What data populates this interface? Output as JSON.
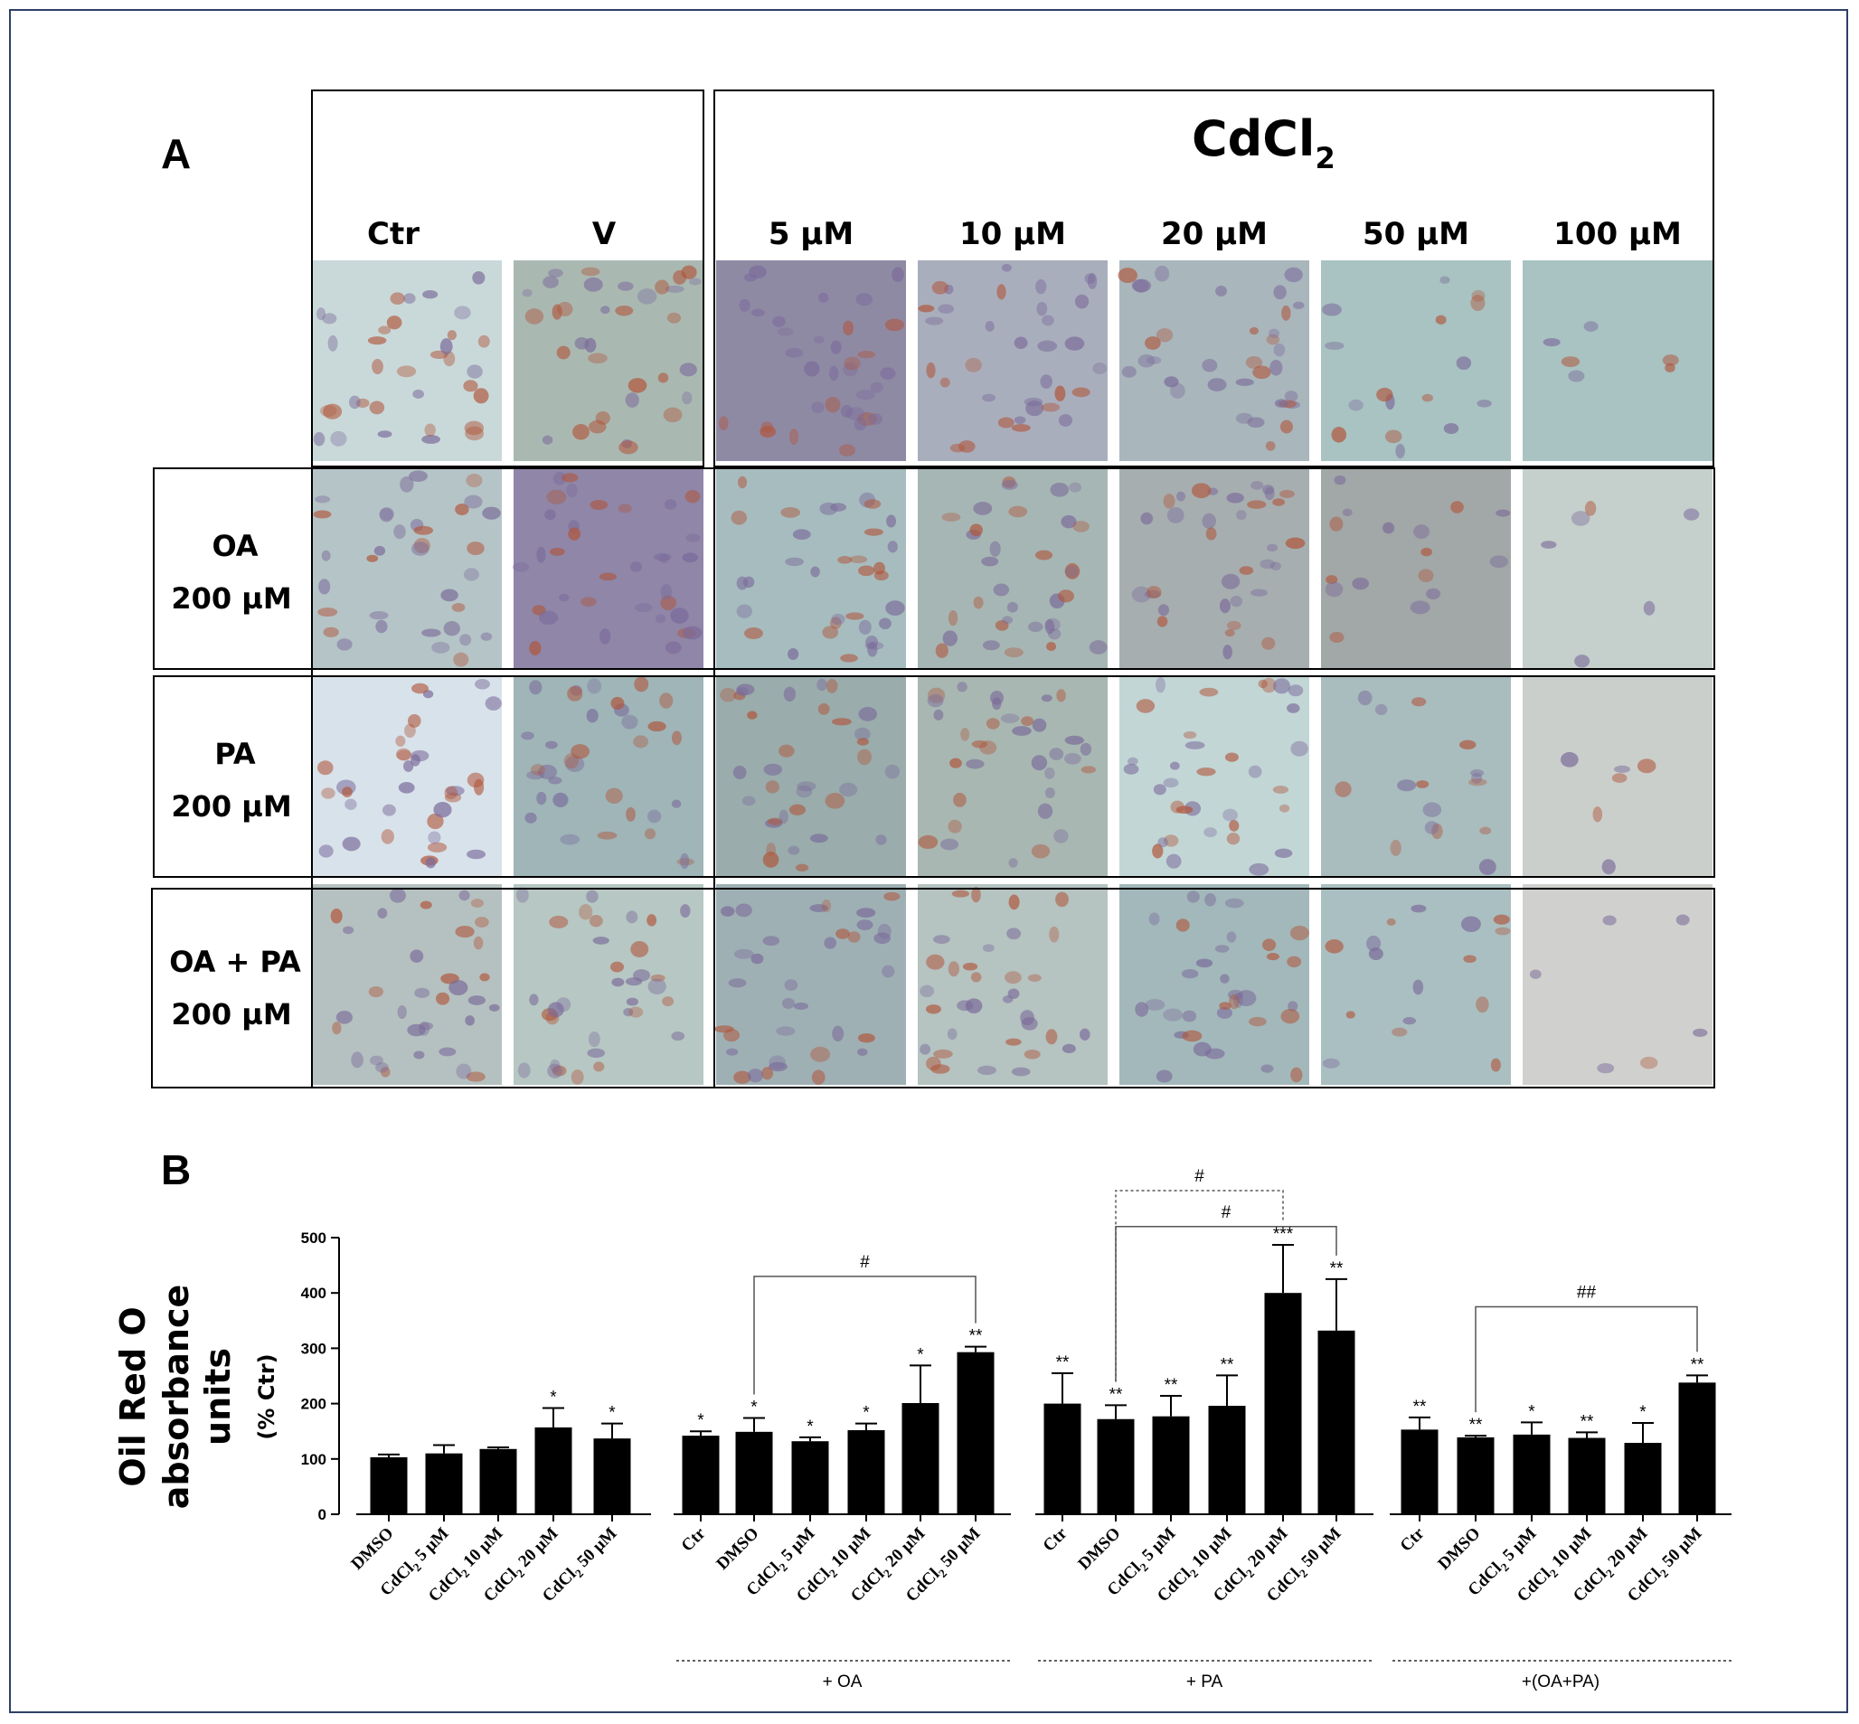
{
  "panel_a": {
    "letter": "A",
    "treatment_header": "CdCl",
    "treatment_sub": "2",
    "columns": [
      "Ctr",
      "V",
      "5 µM",
      "10 µM",
      "20 µM",
      "50 µM",
      "100 µM"
    ],
    "rows": [
      {
        "line1": "",
        "line2": ""
      },
      {
        "line1": "OA",
        "line2": "200 µM"
      },
      {
        "line1": "PA",
        "line2": "200 µM"
      },
      {
        "line1": "OA + PA",
        "line2": "200 µM"
      }
    ],
    "tile_colors": [
      [
        "#c9d9d9",
        "#aab8b2",
        "#8f8aa4",
        "#a9aebc",
        "#a9b6bc",
        "#a9c2c2",
        "#a9c2c2"
      ],
      [
        "#b5c4c6",
        "#8f86a8",
        "#a7bcbf",
        "#a6b6b4",
        "#a6aeb0",
        "#a2a7a7",
        "#c5d0cc"
      ],
      [
        "#d8e2ea",
        "#9fb5b8",
        "#9aacac",
        "#a8b7b2",
        "#c2d6d6",
        "#a9bcbe",
        "#cbcfcc"
      ],
      [
        "#b5c1c0",
        "#b7c7c3",
        "#9fb0b4",
        "#b5c3c1",
        "#a3b8ba",
        "#aabfc1",
        "#d0d1ce"
      ]
    ]
  },
  "chart_data": {
    "type": "bar",
    "panel_letter": "B",
    "ylabel_line1": "Oil Red O",
    "ylabel_line2": "absorbance",
    "ylabel_line3": "units",
    "ylabel_unit": "(% Ctr)",
    "ylim": [
      0,
      500
    ],
    "yticks": [
      0,
      100,
      200,
      300,
      400,
      500
    ],
    "bar_color": "#000000",
    "groups": [
      {
        "label": "",
        "categories": [
          {
            "main": "DMSO",
            "sub": "",
            "tail": ""
          },
          {
            "main": "CdCl",
            "sub": "2",
            "tail": " 5 µM"
          },
          {
            "main": "CdCl",
            "sub": "2",
            "tail": " 10 µM"
          },
          {
            "main": "CdCl",
            "sub": "2",
            "tail": " 20 µM"
          },
          {
            "main": "CdCl",
            "sub": "2",
            "tail": " 50 µM"
          }
        ],
        "values": [
          103,
          110,
          118,
          157,
          137
        ],
        "errors": [
          5,
          15,
          3,
          35,
          27
        ],
        "significance": [
          "",
          "",
          "",
          "*",
          "*"
        ],
        "brackets": []
      },
      {
        "label": "+ OA",
        "categories": [
          {
            "main": "Ctr",
            "sub": "",
            "tail": ""
          },
          {
            "main": "DMSO",
            "sub": "",
            "tail": ""
          },
          {
            "main": "CdCl",
            "sub": "2",
            "tail": " 5 µM"
          },
          {
            "main": "CdCl",
            "sub": "2",
            "tail": " 10 µM"
          },
          {
            "main": "CdCl",
            "sub": "2",
            "tail": " 20 µM"
          },
          {
            "main": "CdCl",
            "sub": "2",
            "tail": " 50 µM"
          }
        ],
        "values": [
          142,
          149,
          132,
          152,
          201,
          293
        ],
        "errors": [
          8,
          25,
          7,
          12,
          68,
          10
        ],
        "significance": [
          "*",
          "*",
          "*",
          "*",
          "*",
          "**"
        ],
        "brackets": [
          {
            "from": 1,
            "to": 5,
            "label": "#",
            "level": 430,
            "dashed": false
          }
        ]
      },
      {
        "label": "+ PA",
        "categories": [
          {
            "main": "Ctr",
            "sub": "",
            "tail": ""
          },
          {
            "main": "DMSO",
            "sub": "",
            "tail": ""
          },
          {
            "main": "CdCl",
            "sub": "2",
            "tail": " 5 µM"
          },
          {
            "main": "CdCl",
            "sub": "2",
            "tail": " 10 µM"
          },
          {
            "main": "CdCl",
            "sub": "2",
            "tail": " 20 µM"
          },
          {
            "main": "CdCl",
            "sub": "2",
            "tail": " 50 µM"
          }
        ],
        "values": [
          200,
          172,
          177,
          196,
          400,
          332
        ],
        "errors": [
          55,
          25,
          37,
          55,
          87,
          93
        ],
        "significance": [
          "**",
          "**",
          "**",
          "**",
          "***",
          "**"
        ],
        "brackets": [
          {
            "from": 1,
            "to": 4,
            "label": "#",
            "level": 585,
            "dashed": true
          },
          {
            "from": 1,
            "to": 5,
            "label": "#",
            "level": 520,
            "dashed": false
          }
        ]
      },
      {
        "label": "+(OA+PA)",
        "categories": [
          {
            "main": "Ctr",
            "sub": "",
            "tail": ""
          },
          {
            "main": "DMSO",
            "sub": "",
            "tail": ""
          },
          {
            "main": "CdCl",
            "sub": "2",
            "tail": " 5 µM"
          },
          {
            "main": "CdCl",
            "sub": "2",
            "tail": " 10 µM"
          },
          {
            "main": "CdCl",
            "sub": "2",
            "tail": " 20 µM"
          },
          {
            "main": "CdCl",
            "sub": "2",
            "tail": " 50 µM"
          }
        ],
        "values": [
          153,
          139,
          144,
          138,
          129,
          238
        ],
        "errors": [
          22,
          3,
          22,
          10,
          36,
          13
        ],
        "significance": [
          "**",
          "**",
          "*",
          "**",
          "*",
          "**"
        ],
        "brackets": [
          {
            "from": 1,
            "to": 5,
            "label": "##",
            "level": 375,
            "dashed": false
          }
        ]
      }
    ]
  }
}
